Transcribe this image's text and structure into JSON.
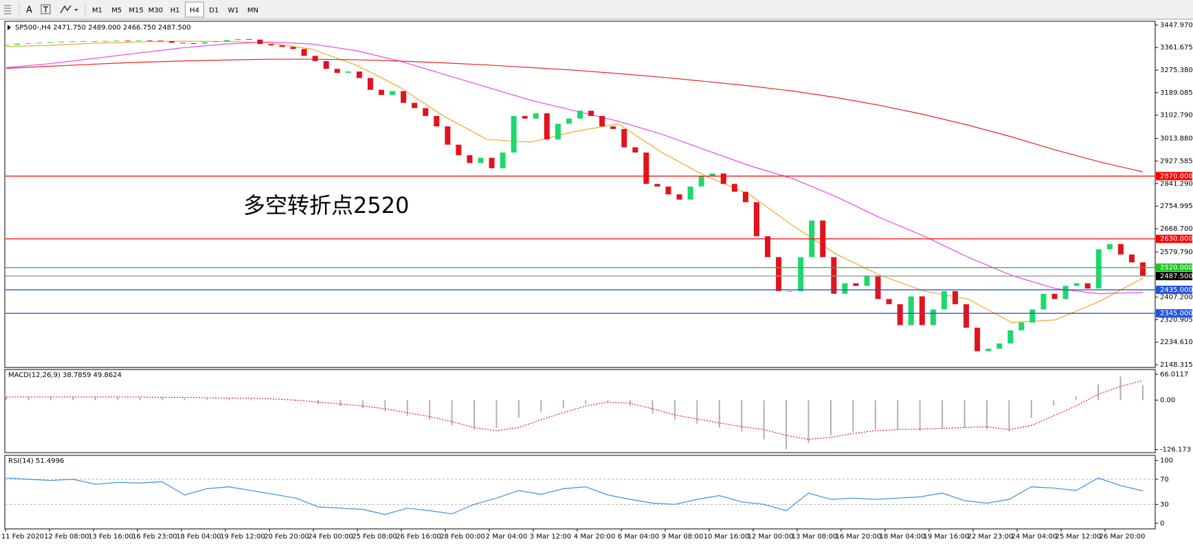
{
  "toolbar": {
    "text_tool": "A",
    "timeframes": [
      "M1",
      "M5",
      "M15",
      "M30",
      "H1",
      "H4",
      "D1",
      "W1",
      "MN"
    ],
    "active": "H4"
  },
  "main": {
    "info": "SP500-,H4  2471.750 2489.000 2466.750 2487.500",
    "annotation": "多空转折点2520",
    "annotation_color": "#e8141b",
    "ylim": [
      2138,
      3462
    ],
    "yticks": [
      {
        "value": 3447.97,
        "label": "3447.970"
      },
      {
        "value": 3361.675,
        "label": "3361.675"
      },
      {
        "value": 3275.38,
        "label": "3275.380"
      },
      {
        "value": 3189.085,
        "label": "3189.085"
      },
      {
        "value": 3102.79,
        "label": "3102.790"
      },
      {
        "value": 3013.88,
        "label": "3013.880"
      },
      {
        "value": 2927.585,
        "label": "2927.585"
      },
      {
        "value": 2841.29,
        "label": "2841.290"
      },
      {
        "value": 2754.995,
        "label": "2754.995"
      },
      {
        "value": 2668.7,
        "label": "2668.700"
      },
      {
        "value": 2579.79,
        "label": "2579.790"
      },
      {
        "value": 2407.2,
        "label": "2407.200"
      },
      {
        "value": 2320.905,
        "label": "2320.905"
      },
      {
        "value": 2234.61,
        "label": "2234.610"
      },
      {
        "value": 2148.315,
        "label": "2148.315"
      }
    ],
    "levels": [
      {
        "value": 2870,
        "label": "2870.000",
        "color": "#ff0000"
      },
      {
        "value": 2630,
        "label": "2630.000",
        "color": "#ff0000"
      },
      {
        "value": 2520,
        "label": "2520.000",
        "color": "#22c222"
      },
      {
        "value": 2487.5,
        "label": "2487.500",
        "color": "#000000"
      },
      {
        "value": 2435,
        "label": "2435.000",
        "color": "#2255dd"
      },
      {
        "value": 2345,
        "label": "2345.000",
        "color": "#2255dd"
      }
    ],
    "up_color": "#1ed86c",
    "down_color": "#e0141e",
    "closes": [
      3372,
      3376,
      3378,
      3380,
      3382,
      3384,
      3385,
      3386,
      3386,
      3387,
      3388,
      3387,
      3389,
      3388,
      3386,
      3380,
      3378,
      3377,
      3382,
      3385,
      3390,
      3394,
      3392,
      3375,
      3370,
      3364,
      3356,
      3330,
      3310,
      3280,
      3265,
      3270,
      3245,
      3200,
      3180,
      3195,
      3150,
      3130,
      3100,
      3060,
      2990,
      2950,
      2920,
      2940,
      2900,
      2960,
      3100,
      3090,
      3110,
      3010,
      3070,
      3090,
      3120,
      3100,
      3060,
      3050,
      2980,
      2960,
      2840,
      2830,
      2800,
      2780,
      2830,
      2870,
      2880,
      2840,
      2810,
      2770,
      2640,
      2560,
      2430,
      2430,
      2560,
      2700,
      2560,
      2420,
      2460,
      2450,
      2490,
      2400,
      2380,
      2300,
      2410,
      2300,
      2360,
      2430,
      2380,
      2290,
      2200,
      2210,
      2230,
      2280,
      2310,
      2360,
      2420,
      2400,
      2450,
      2460,
      2440,
      2590,
      2610,
      2570,
      2540,
      2487.5
    ],
    "ma": [
      {
        "color": "#f5a623",
        "values": [
          3365,
          3370,
          3378,
          3383,
          3386,
          3385,
          3380,
          3355,
          3295,
          3210,
          3100,
          3010,
          3000,
          3040,
          3070,
          2960,
          2870,
          2800,
          2680,
          2570,
          2490,
          2430,
          2400,
          2310,
          2320,
          2390,
          2480
        ]
      },
      {
        "color": "#ee44ee",
        "values": [
          3285,
          3300,
          3320,
          3340,
          3360,
          3375,
          3383,
          3375,
          3350,
          3310,
          3260,
          3210,
          3160,
          3120,
          3080,
          3030,
          2970,
          2910,
          2860,
          2790,
          2710,
          2640,
          2560,
          2490,
          2440,
          2420,
          2425
        ]
      },
      {
        "color": "#ee2222",
        "values": [
          3282,
          3290,
          3298,
          3305,
          3310,
          3314,
          3317,
          3317,
          3315,
          3310,
          3303,
          3295,
          3285,
          3275,
          3262,
          3248,
          3232,
          3215,
          3195,
          3170,
          3140,
          3105,
          3065,
          3020,
          2970,
          2925,
          2886
        ]
      }
    ]
  },
  "macd": {
    "label": "MACD(12,26,9) 38.7859 49.8624",
    "ylim": [
      -134,
      78
    ],
    "yticks": [
      66.0117,
      {
        "value": 0,
        "label": "0.00"
      },
      -126.173
    ],
    "hist_color": "#b0b0b0",
    "signal_color": "#e02020",
    "histogram": [
      8,
      9,
      10,
      9,
      9,
      8,
      7,
      6,
      5,
      4,
      5,
      4,
      1,
      -3,
      -10,
      -15,
      -20,
      -28,
      -40,
      -50,
      -65,
      -75,
      -70,
      -45,
      -30,
      -20,
      -10,
      -5,
      -15,
      -35,
      -50,
      -60,
      -70,
      -80,
      -100,
      -125,
      -110,
      -90,
      -80,
      -75,
      -75,
      -78,
      -72,
      -70,
      -75,
      -80,
      -45,
      -15,
      10,
      40,
      60,
      38.7859
    ],
    "signal": [
      8,
      8,
      8,
      8,
      8,
      8,
      8,
      7,
      7,
      6,
      5,
      5,
      3,
      0,
      -5,
      -10,
      -15,
      -22,
      -32,
      -42,
      -55,
      -70,
      -78,
      -70,
      -50,
      -32,
      -15,
      -5,
      -8,
      -22,
      -38,
      -48,
      -58,
      -68,
      -75,
      -90,
      -100,
      -95,
      -85,
      -78,
      -75,
      -74,
      -72,
      -70,
      -68,
      -75,
      -65,
      -40,
      -15,
      15,
      35,
      49.8624
    ]
  },
  "rsi": {
    "label": "RSI(14) 51.4996",
    "ylim": [
      -9,
      108
    ],
    "yticks": [
      100,
      70,
      30,
      0
    ],
    "levels": [
      70,
      30
    ],
    "color": "#3a8ee6",
    "values": [
      72,
      70,
      68,
      70,
      62,
      65,
      64,
      66,
      45,
      55,
      58,
      52,
      46,
      40,
      26,
      24,
      22,
      14,
      24,
      20,
      15,
      30,
      40,
      52,
      46,
      55,
      58,
      45,
      38,
      32,
      30,
      38,
      44,
      34,
      30,
      20,
      48,
      38,
      40,
      38,
      40,
      42,
      48,
      36,
      32,
      38,
      58,
      56,
      52,
      72,
      60,
      51.4996
    ]
  },
  "time_labels": [
    "11 Feb 2020",
    "12 Feb 08:00",
    "13 Feb 16:00",
    "16 Feb 23:00",
    "18 Feb 04:00",
    "19 Feb 12:00",
    "20 Feb 20:00",
    "24 Feb 00:00",
    "25 Feb 08:00",
    "26 Feb 16:00",
    "28 Feb 00:00",
    "2 Mar 04:00",
    "3 Mar 12:00",
    "4 Mar 20:00",
    "6 Mar 04:00",
    "9 Mar 08:00",
    "10 Mar 16:00",
    "12 Mar 00:00",
    "13 Mar 08:00",
    "16 Mar 20:00",
    "18 Mar 04:00",
    "19 Mar 16:00",
    "22 Mar 23:00",
    "24 Mar 04:00",
    "25 Mar 12:00",
    "26 Mar 20:00"
  ]
}
